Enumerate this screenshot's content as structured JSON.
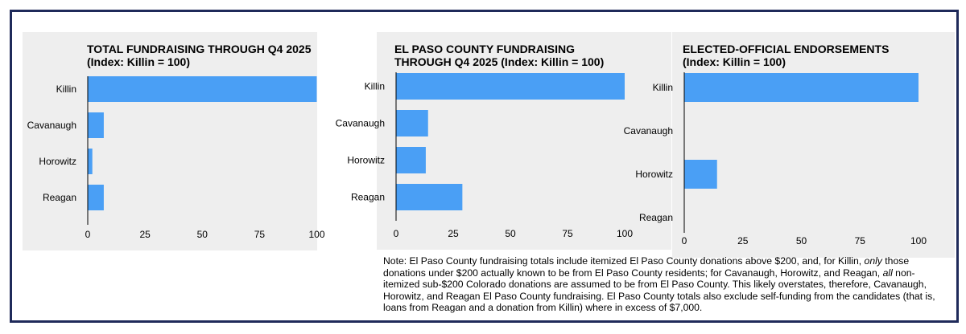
{
  "colors": {
    "bar": "#4a9ff5",
    "frame": "#1f2a5a",
    "panel_bg": "#eeeeee",
    "axis": "#000000"
  },
  "chart_data": [
    {
      "type": "bar",
      "orientation": "horizontal",
      "title_lines": [
        "TOTAL FUNDRAISING THROUGH Q4 2025",
        "(Index: Killin = 100)"
      ],
      "categories": [
        "Killin",
        "Cavanaugh",
        "Horowitz",
        "Reagan"
      ],
      "values": [
        100,
        7,
        2,
        7
      ],
      "xlim": [
        0,
        100
      ],
      "xticks": [
        "0",
        "25",
        "50",
        "75",
        "100"
      ],
      "grid": false
    },
    {
      "type": "bar",
      "orientation": "horizontal",
      "title_lines": [
        "EL PASO COUNTY FUNDRAISING",
        "THROUGH Q4 2025 (Index: Killin = 100)"
      ],
      "categories": [
        "Killin",
        "Cavanaugh",
        "Horowitz",
        "Reagan"
      ],
      "values": [
        100,
        14,
        13,
        29
      ],
      "xlim": [
        0,
        100
      ],
      "xticks": [
        "0",
        "25",
        "50",
        "75",
        "100"
      ],
      "grid": false
    },
    {
      "type": "bar",
      "orientation": "horizontal",
      "title_lines": [
        "ELECTED-OFFICIAL ENDORSEMENTS",
        "(Index: Killin = 100)"
      ],
      "categories": [
        "Killin",
        "Cavanaugh",
        "Horowitz",
        "Reagan"
      ],
      "values": [
        100,
        0,
        14,
        0
      ],
      "xlim": [
        0,
        100
      ],
      "xticks": [
        "0",
        "25",
        "50",
        "75",
        "100"
      ],
      "grid": false
    }
  ],
  "note": {
    "part1": "Note: El Paso County fundraising totals include itemized El Paso County donations above $200, and, for Killin, ",
    "em1": "only",
    "part2": " those donations under $200 actually known to be from El Paso County residents; for Cavanaugh, Horowitz, and Reagan, ",
    "em2": "all",
    "part3": " non-itemized sub-$200 Colorado donations are assumed to be from El Paso County. This likely overstates, therefore, Cavanaugh, Horowitz, and Reagan El Paso County fundraising. El Paso County totals also exclude self-funding from the candidates (that is, loans from Reagan and a donation from Killin) where in excess of $7,000."
  }
}
